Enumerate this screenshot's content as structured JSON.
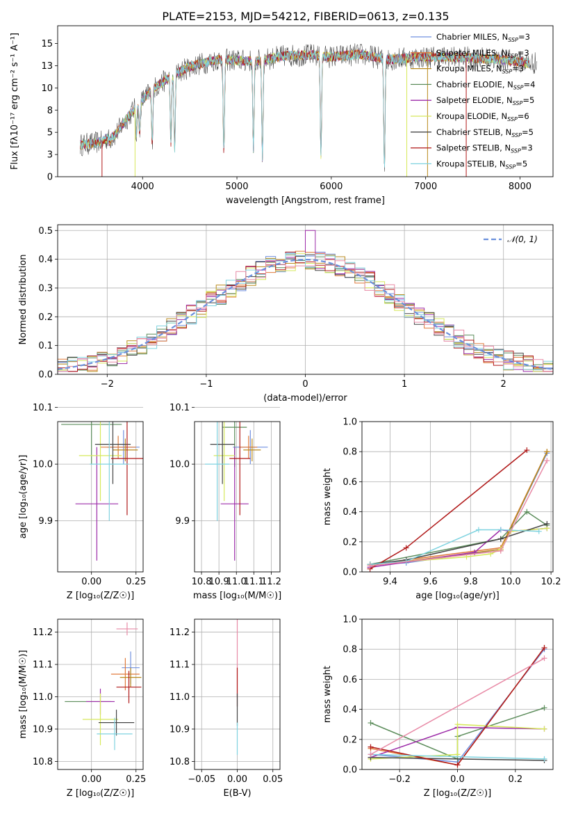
{
  "figure_title": "PLATE=2153, MJD=54212, FIBERID=0613, z=0.135",
  "colors": {
    "Chabrier MILES": "#6f8fe0",
    "Salpeter MILES": "#e07a3a",
    "Kroupa MILES": "#b98a1c",
    "Chabrier ELODIE": "#5b8c5a",
    "Salpeter ELODIE": "#9c2aa8",
    "Kroupa ELODIE": "#d6e85a",
    "Chabrier STELIB": "#444444",
    "Salpeter STELIB": "#b01818",
    "Kroupa STELIB": "#7fd3e0",
    "normal": "#6a8fdc",
    "pink": "#e88aa6"
  },
  "chart_data": [
    {
      "id": "spectrum",
      "type": "line",
      "xlabel": "wavelength [Angstrom, rest frame]",
      "ylabel": "Flux [fλ10⁻¹⁷ erg cm⁻² s⁻¹ A⁻¹]",
      "xlim": [
        3100,
        8350
      ],
      "ylim": [
        0,
        17
      ],
      "xticks": [
        4000,
        5000,
        6000,
        7000,
        8000
      ],
      "yticks": [
        0.0,
        2.5,
        5.0,
        7.5,
        10.0,
        12.5,
        15.0
      ],
      "legend_position": "top-right",
      "legend": [
        {
          "name": "Chabrier MILES",
          "nssp": "3"
        },
        {
          "name": "Salpeter MILES",
          "nssp": "3"
        },
        {
          "name": "Kroupa MILES",
          "nssp": "3"
        },
        {
          "name": "Chabrier ELODIE",
          "nssp": "4"
        },
        {
          "name": "Salpeter ELODIE",
          "nssp": "5"
        },
        {
          "name": "Kroupa ELODIE",
          "nssp": "6"
        },
        {
          "name": "Chabrier STELIB",
          "nssp": "5"
        },
        {
          "name": "Salpeter STELIB",
          "nssp": "3"
        },
        {
          "name": "Kroupa STELIB",
          "nssp": "5"
        }
      ],
      "continuum": [
        [
          3350,
          3.6
        ],
        [
          3500,
          3.8
        ],
        [
          3700,
          4.6
        ],
        [
          3900,
          7.5
        ],
        [
          4100,
          9.8
        ],
        [
          4300,
          11.3
        ],
        [
          4500,
          12.4
        ],
        [
          4800,
          13.2
        ],
        [
          5000,
          13.1
        ],
        [
          5200,
          13.0
        ],
        [
          5500,
          13.6
        ],
        [
          5800,
          13.7
        ],
        [
          6000,
          13.5
        ],
        [
          6300,
          13.8
        ],
        [
          6600,
          13.2
        ],
        [
          7000,
          13.5
        ],
        [
          7400,
          13.4
        ],
        [
          7800,
          13.2
        ],
        [
          8100,
          12.8
        ]
      ],
      "absorption_lines": [
        [
          3570,
          0.4
        ],
        [
          3650,
          0.5
        ],
        [
          3934,
          3.0
        ],
        [
          3969,
          3.5
        ],
        [
          4102,
          6.0
        ],
        [
          4300,
          7.5
        ],
        [
          4340,
          8.5
        ],
        [
          4861,
          10.5
        ],
        [
          5175,
          9.8
        ],
        [
          5270,
          11.0
        ],
        [
          5890,
          11.3
        ],
        [
          6563,
          12.4
        ]
      ]
    },
    {
      "id": "residuals",
      "type": "histogram",
      "xlabel": "(data-model)/error",
      "ylabel": "Normed distribution",
      "xlim": [
        -2.5,
        2.5
      ],
      "ylim": [
        0,
        0.52
      ],
      "xticks": [
        -2,
        -1,
        0,
        1,
        2
      ],
      "yticks": [
        0.0,
        0.1,
        0.2,
        0.3,
        0.4,
        0.5
      ],
      "bin_width": 0.1,
      "legend": "𝒩(0, 1)",
      "legend_position": "top-right",
      "grid": true
    },
    {
      "id": "age_vs_Z",
      "type": "errorbar",
      "xlabel": "Z [log₁₀(Z/Z☉)]",
      "ylabel": "age  [log₁₀(age/yr)]",
      "xlim": [
        -0.19,
        0.29
      ],
      "ylim": [
        9.81,
        10.075
      ],
      "xticks": [
        0.0,
        0.25
      ],
      "yticks": [
        9.9,
        10.0,
        10.1
      ],
      "points": [
        {
          "series": "Chabrier MILES",
          "x": 0.18,
          "y": 10.03,
          "xerr": 0.09,
          "yerr": 0.03
        },
        {
          "series": "Salpeter MILES",
          "x": 0.15,
          "y": 10.03,
          "xerr": 0.1,
          "yerr": 0.02
        },
        {
          "series": "Kroupa MILES",
          "x": 0.19,
          "y": 10.025,
          "xerr": 0.07,
          "yerr": 0.02
        },
        {
          "series": "Chabrier ELODIE",
          "x": 0.0,
          "y": 10.07,
          "xerr": 0.17,
          "yerr": 0.07
        },
        {
          "series": "Salpeter ELODIE",
          "x": 0.03,
          "y": 9.93,
          "xerr": 0.12,
          "yerr": 0.1
        },
        {
          "series": "Kroupa ELODIE",
          "x": 0.05,
          "y": 10.015,
          "xerr": 0.12,
          "yerr": 0.08
        },
        {
          "series": "Chabrier STELIB",
          "x": 0.12,
          "y": 10.035,
          "xerr": 0.1,
          "yerr": 0.07
        },
        {
          "series": "Salpeter STELIB",
          "x": 0.2,
          "y": 10.01,
          "xerr": 0.09,
          "yerr": 0.1
        },
        {
          "series": "Kroupa STELIB",
          "x": 0.1,
          "y": 10.0,
          "xerr": 0.11,
          "yerr": 0.1
        }
      ]
    },
    {
      "id": "age_vs_mass",
      "type": "errorbar",
      "xlabel": "mass [log₁₀(M/M☉)]",
      "ylabel": "",
      "xlim": [
        10.76,
        11.25
      ],
      "ylim": [
        9.81,
        10.075
      ],
      "xticks": [
        10.8,
        10.9,
        11.0,
        11.1,
        11.2
      ],
      "yticks": [
        9.9,
        10.0,
        10.1
      ],
      "points": [
        {
          "series": "Chabrier MILES",
          "x": 11.08,
          "y": 10.03,
          "xerr": 0.1,
          "yerr": 0.03
        },
        {
          "series": "Salpeter MILES",
          "x": 11.07,
          "y": 10.03,
          "xerr": 0.05,
          "yerr": 0.02
        },
        {
          "series": "Kroupa MILES",
          "x": 11.09,
          "y": 10.025,
          "xerr": 0.05,
          "yerr": 0.02
        },
        {
          "series": "Chabrier ELODIE",
          "x": 10.99,
          "y": 10.065,
          "xerr": 0.07,
          "yerr": 0.07
        },
        {
          "series": "Salpeter ELODIE",
          "x": 10.99,
          "y": 9.93,
          "xerr": 0.08,
          "yerr": 0.1
        },
        {
          "series": "Kroupa ELODIE",
          "x": 10.93,
          "y": 10.015,
          "xerr": 0.06,
          "yerr": 0.08
        },
        {
          "series": "Chabrier STELIB",
          "x": 10.92,
          "y": 10.035,
          "xerr": 0.07,
          "yerr": 0.07
        },
        {
          "series": "Salpeter STELIB",
          "x": 11.02,
          "y": 10.01,
          "xerr": 0.06,
          "yerr": 0.1
        },
        {
          "series": "Kroupa STELIB",
          "x": 10.89,
          "y": 10.0,
          "xerr": 0.07,
          "yerr": 0.1
        },
        {
          "series": "pink",
          "x": 11.2,
          "y": 10.125,
          "xerr": 0.05,
          "yerr": 0.03
        }
      ]
    },
    {
      "id": "massweight_vs_age",
      "type": "line",
      "xlabel": "age  [log₁₀(age/yr)]",
      "ylabel": "mass weight",
      "xlim": [
        9.26,
        10.21
      ],
      "ylim": [
        0,
        1.0
      ],
      "xticks": [
        9.4,
        9.6,
        9.8,
        10.0,
        10.2
      ],
      "yticks": [
        0.0,
        0.2,
        0.4,
        0.6,
        0.8,
        1.0
      ],
      "grid": true,
      "series": [
        {
          "name": "Chabrier MILES",
          "x": [
            9.3,
            9.48,
            9.95,
            10.18
          ],
          "y": [
            0.05,
            0.06,
            0.15,
            0.79
          ]
        },
        {
          "name": "Salpeter MILES",
          "x": [
            9.3,
            9.48,
            9.95,
            10.18
          ],
          "y": [
            0.04,
            0.08,
            0.16,
            0.8
          ]
        },
        {
          "name": "Kroupa MILES",
          "x": [
            9.3,
            9.48,
            9.95,
            10.18
          ],
          "y": [
            0.05,
            0.07,
            0.15,
            0.8
          ]
        },
        {
          "name": "Chabrier ELODIE",
          "x": [
            9.3,
            9.95,
            10.08,
            10.18
          ],
          "y": [
            0.05,
            0.22,
            0.4,
            0.31
          ]
        },
        {
          "name": "Salpeter ELODIE",
          "x": [
            9.3,
            9.82,
            9.95,
            10.0,
            10.18
          ],
          "y": [
            0.03,
            0.13,
            0.28,
            0.27,
            0.29
          ]
        },
        {
          "name": "Kroupa ELODIE",
          "x": [
            9.3,
            9.78,
            9.9,
            9.95,
            10.0,
            10.18
          ],
          "y": [
            0.05,
            0.1,
            0.12,
            0.15,
            0.27,
            0.29
          ]
        },
        {
          "name": "Chabrier STELIB",
          "x": [
            9.3,
            9.48,
            9.95,
            10.18
          ],
          "y": [
            0.05,
            0.08,
            0.22,
            0.32
          ]
        },
        {
          "name": "Salpeter STELIB",
          "x": [
            9.3,
            9.48,
            10.08
          ],
          "y": [
            0.02,
            0.16,
            0.81
          ]
        },
        {
          "name": "Kroupa STELIB",
          "x": [
            9.3,
            9.48,
            9.84,
            9.95,
            10.14
          ],
          "y": [
            0.05,
            0.07,
            0.28,
            0.28,
            0.27
          ]
        },
        {
          "name": "pink",
          "x": [
            9.3,
            9.95,
            10.18
          ],
          "y": [
            0.04,
            0.14,
            0.74
          ]
        }
      ]
    },
    {
      "id": "mass_vs_Z",
      "type": "errorbar",
      "xlabel": "Z [log₁₀(Z/Z☉)]",
      "ylabel": "mass [log₁₀(M/M☉)]",
      "xlim": [
        -0.19,
        0.29
      ],
      "ylim": [
        10.775,
        11.24
      ],
      "xticks": [
        0.0,
        0.25
      ],
      "yticks": [
        10.8,
        10.9,
        11.0,
        11.1,
        11.2
      ],
      "points": [
        {
          "series": "Chabrier MILES",
          "x": 0.22,
          "y": 11.09,
          "xerr": 0.05,
          "yerr": 0.05
        },
        {
          "series": "Salpeter MILES",
          "x": 0.19,
          "y": 11.07,
          "xerr": 0.08,
          "yerr": 0.05
        },
        {
          "series": "Kroupa MILES",
          "x": 0.22,
          "y": 11.06,
          "xerr": 0.06,
          "yerr": 0.03
        },
        {
          "series": "Chabrier ELODIE",
          "x": -0.02,
          "y": 10.985,
          "xerr": 0.13,
          "yerr": 0.0
        },
        {
          "series": "Salpeter ELODIE",
          "x": 0.05,
          "y": 10.985,
          "xerr": 0.08,
          "yerr": 0.04
        },
        {
          "series": "Kroupa ELODIE",
          "x": 0.05,
          "y": 10.93,
          "xerr": 0.1,
          "yerr": 0.08
        },
        {
          "series": "Chabrier STELIB",
          "x": 0.14,
          "y": 10.92,
          "xerr": 0.1,
          "yerr": 0.04
        },
        {
          "series": "Salpeter STELIB",
          "x": 0.21,
          "y": 11.03,
          "xerr": 0.07,
          "yerr": 0.05
        },
        {
          "series": "Kroupa STELIB",
          "x": 0.13,
          "y": 10.885,
          "xerr": 0.1,
          "yerr": 0.05
        },
        {
          "series": "pink",
          "x": 0.2,
          "y": 11.21,
          "xerr": 0.06,
          "yerr": 0.02
        }
      ]
    },
    {
      "id": "mass_vs_ebv",
      "type": "errorbar",
      "xlabel": "E(B-V)",
      "ylabel": "",
      "xlim": [
        -0.06,
        0.06
      ],
      "ylim": [
        10.775,
        11.24
      ],
      "xticks": [
        -0.05,
        0.0,
        0.05
      ],
      "yticks": [
        10.8,
        10.9,
        11.0,
        11.1,
        11.2
      ],
      "points": [
        {
          "series": "pink",
          "x": 0.0,
          "y": 11.12,
          "xerr": 0.0,
          "yerr": 0.12
        },
        {
          "series": "Salpeter STELIB",
          "x": 0.0,
          "y": 11.03,
          "xerr": 0.0,
          "yerr": 0.06
        },
        {
          "series": "Chabrier STELIB",
          "x": 0.0,
          "y": 10.96,
          "xerr": 0.0,
          "yerr": 0.05
        },
        {
          "series": "Kroupa STELIB",
          "x": 0.0,
          "y": 10.87,
          "xerr": 0.0,
          "yerr": 0.05
        }
      ]
    },
    {
      "id": "massweight_vs_Z",
      "type": "line",
      "xlabel": "Z [log₁₀(Z/Z☉)]",
      "ylabel": "mass weight",
      "xlim": [
        -0.33,
        0.33
      ],
      "ylim": [
        0,
        1.0
      ],
      "xticks": [
        -0.2,
        0.0,
        0.2
      ],
      "yticks": [
        0.0,
        0.2,
        0.4,
        0.6,
        0.8,
        1.0
      ],
      "grid": true,
      "series": [
        {
          "name": "Chabrier MILES",
          "x": [
            -0.3,
            0.0,
            0.3
          ],
          "y": [
            0.1,
            0.05,
            0.8
          ]
        },
        {
          "name": "Salpeter MILES",
          "x": [
            -0.3,
            0.0,
            0.3
          ],
          "y": [
            0.14,
            0.03,
            0.81
          ]
        },
        {
          "name": "Chabrier ELODIE",
          "x": [
            -0.3,
            0.0,
            0.0,
            0.3
          ],
          "y": [
            0.31,
            0.07,
            0.22,
            0.41
          ]
        },
        {
          "name": "Salpeter ELODIE",
          "x": [
            -0.3,
            0.0,
            0.3
          ],
          "y": [
            0.08,
            0.28,
            0.27
          ]
        },
        {
          "name": "Kroupa ELODIE",
          "x": [
            -0.3,
            0.0,
            0.0,
            0.3
          ],
          "y": [
            0.07,
            0.1,
            0.3,
            0.27
          ]
        },
        {
          "name": "Chabrier STELIB",
          "x": [
            -0.3,
            0.3
          ],
          "y": [
            0.08,
            0.06
          ]
        },
        {
          "name": "Salpeter STELIB",
          "x": [
            -0.3,
            0.0,
            0.3
          ],
          "y": [
            0.15,
            0.03,
            0.81
          ]
        },
        {
          "name": "Kroupa STELIB",
          "x": [
            -0.3,
            0.3
          ],
          "y": [
            0.1,
            0.07
          ]
        },
        {
          "name": "pink",
          "x": [
            -0.3,
            0.3
          ],
          "y": [
            0.1,
            0.74
          ]
        }
      ]
    }
  ]
}
